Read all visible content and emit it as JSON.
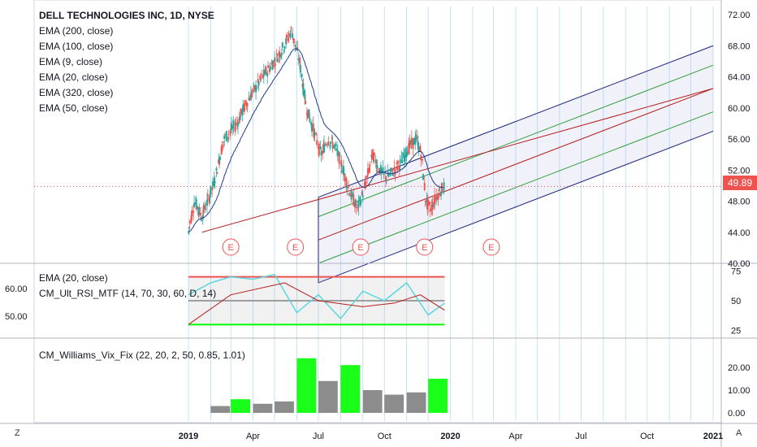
{
  "colors": {
    "up": "#26a69a",
    "down": "#ef5350",
    "fork_outer": "#1a237e",
    "fork_inner": "#2e9e3a",
    "median": "#b71c1c",
    "ema_blue": "#1e3a8a",
    "ema_orange": "#f5a623",
    "ema_green": "#43a047",
    "rsi": "#5ad6e0",
    "rsi_ema": "#b71c1c",
    "grid_v": "#9bd0ee",
    "green_bar": "#00ff00",
    "gray_bar": "#808080"
  },
  "legend_main": {
    "title": "DELL TECHNOLOGIES INC, 1D, NYSE",
    "items": [
      "EMA (200, close)",
      "EMA (100, close)",
      "EMA (9, close)",
      "EMA (20, close)",
      "EMA (320, close)",
      "EMA (50, close)"
    ]
  },
  "legend_rsi": {
    "items": [
      "EMA (20, close)",
      "CM_Ult_RSI_MTF (14, 70, 30, 60, D, 14)"
    ]
  },
  "legend_vix": {
    "items": [
      "CM_Williams_Vix_Fix (22, 20, 2, 50, 0.85, 1.01)"
    ]
  },
  "last_price": "49.89",
  "corner_left": "Z",
  "corner_right": "A",
  "earnings_label": "E",
  "chart_data": [
    {
      "type": "candlestick",
      "title": "DELL TECHNOLOGIES INC, 1D, NYSE",
      "x_ticks": [
        "2019",
        "Apr",
        "Jul",
        "Oct",
        "2020",
        "Apr",
        "Jul",
        "Oct",
        "2021"
      ],
      "x_tick_dates": [
        "2019-01-01",
        "2019-04-01",
        "2019-07-01",
        "2019-10-01",
        "2020-01-01",
        "2020-04-01",
        "2020-07-01",
        "2020-10-01",
        "2021-01-01"
      ],
      "y_ticks": [
        "72.00",
        "68.00",
        "64.00",
        "60.00",
        "56.00",
        "52.00",
        "48.00",
        "44.00",
        "40.00"
      ],
      "ylim": [
        40,
        72
      ],
      "last_price": 49.89,
      "price_path": [
        [
          "2019-01-01",
          44
        ],
        [
          "2019-01-10",
          48
        ],
        [
          "2019-01-20",
          46
        ],
        [
          "2019-02-05",
          50
        ],
        [
          "2019-02-20",
          56
        ],
        [
          "2019-03-10",
          58
        ],
        [
          "2019-03-25",
          61
        ],
        [
          "2019-04-15",
          64
        ],
        [
          "2019-05-01",
          66
        ],
        [
          "2019-05-15",
          68
        ],
        [
          "2019-05-25",
          70
        ],
        [
          "2019-06-05",
          66
        ],
        [
          "2019-06-15",
          60
        ],
        [
          "2019-06-25",
          57
        ],
        [
          "2019-07-05",
          54
        ],
        [
          "2019-07-15",
          56
        ],
        [
          "2019-07-25",
          55
        ],
        [
          "2019-08-05",
          52
        ],
        [
          "2019-08-15",
          49
        ],
        [
          "2019-08-25",
          47
        ],
        [
          "2019-09-05",
          50
        ],
        [
          "2019-09-15",
          54
        ],
        [
          "2019-09-25",
          52
        ],
        [
          "2019-10-05",
          51
        ],
        [
          "2019-10-15",
          52
        ],
        [
          "2019-10-25",
          53
        ],
        [
          "2019-11-05",
          55
        ],
        [
          "2019-11-15",
          56
        ],
        [
          "2019-11-22",
          54
        ],
        [
          "2019-11-28",
          48
        ],
        [
          "2019-12-05",
          47
        ],
        [
          "2019-12-15",
          49
        ],
        [
          "2019-12-24",
          49.89
        ]
      ],
      "pitchfork": {
        "start": [
          "2019-07-01",
          43
        ],
        "end": [
          "2021-01-01",
          62.5
        ],
        "band_offsets": [
          -5.5,
          -3,
          0,
          3,
          5.5
        ]
      },
      "earnings_dates": [
        "2019-03-01",
        "2019-05-30",
        "2019-08-29",
        "2019-11-26",
        "2020-02-27"
      ]
    },
    {
      "type": "line",
      "title": "CM_Ult_RSI_MTF (14, 70, 30, 60, D, 14)",
      "y_ticks": [
        "75",
        "50",
        "25"
      ],
      "ylim": [
        20,
        80
      ],
      "lines": [
        70,
        50,
        30
      ],
      "series": [
        {
          "name": "CM_Ult_RSI_MTF (14, 70, 30, 60, D, 14)",
          "points": [
            [
              "2019-01-01",
              55
            ],
            [
              "2019-02-01",
              65
            ],
            [
              "2019-03-01",
              70
            ],
            [
              "2019-04-01",
              68
            ],
            [
              "2019-05-01",
              72
            ],
            [
              "2019-06-01",
              40
            ],
            [
              "2019-07-01",
              55
            ],
            [
              "2019-08-01",
              35
            ],
            [
              "2019-09-01",
              58
            ],
            [
              "2019-10-01",
              50
            ],
            [
              "2019-11-01",
              65
            ],
            [
              "2019-12-01",
              38
            ],
            [
              "2019-12-24",
              48
            ]
          ]
        },
        {
          "name": "EMA (20, close)",
          "points": [
            [
              "2019-01-01",
              30
            ],
            [
              "2019-03-01",
              55
            ],
            [
              "2019-05-15",
              65
            ],
            [
              "2019-07-01",
              50
            ],
            [
              "2019-09-01",
              45
            ],
            [
              "2019-10-15",
              48
            ],
            [
              "2019-11-20",
              55
            ],
            [
              "2019-12-24",
              42
            ]
          ]
        }
      ],
      "left_labels": [
        "60.00",
        "50.00"
      ]
    },
    {
      "type": "bar",
      "title": "CM_Williams_Vix_Fix (22, 20, 2, 50, 0.85, 1.01)",
      "y_ticks": [
        "20.00",
        "10.00",
        "0.00"
      ],
      "ylim": [
        0,
        25
      ],
      "x": [
        "2019-02",
        "2019-03",
        "2019-04",
        "2019-05",
        "2019-06",
        "2019-07",
        "2019-08",
        "2019-09",
        "2019-10",
        "2019-11",
        "2019-12"
      ],
      "values": [
        3,
        6,
        4,
        5,
        24,
        14,
        21,
        10,
        8,
        9,
        15
      ],
      "highlight": [
        false,
        true,
        false,
        false,
        true,
        false,
        true,
        false,
        false,
        false,
        true
      ]
    }
  ]
}
